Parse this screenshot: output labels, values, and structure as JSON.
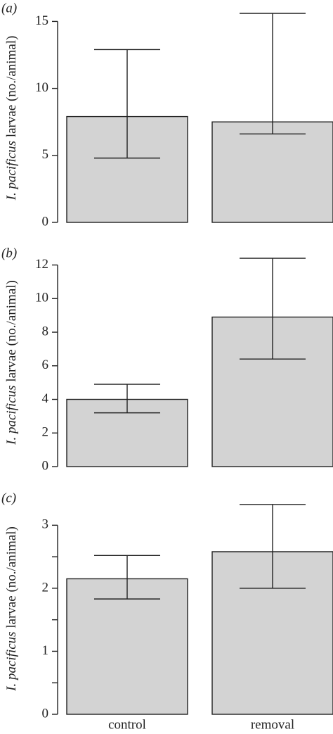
{
  "chart_data": [
    {
      "type": "bar",
      "panel_label": "(a)",
      "ylabel_italic": "I. pacificus",
      "ylabel": "larvae (no./animal)",
      "values": [
        7.9,
        7.5
      ],
      "lower": [
        4.8,
        6.6
      ],
      "upper": [
        12.9,
        15.6
      ],
      "color": "#d3d3d3",
      "ylim": [
        0,
        15.6
      ],
      "yticks": [
        0,
        5,
        10,
        15
      ]
    },
    {
      "type": "bar",
      "panel_label": "(b)",
      "ylabel_italic": "I. pacificus",
      "ylabel": "larvae (no./animal)",
      "values": [
        4.0,
        8.9
      ],
      "lower": [
        3.2,
        6.4
      ],
      "upper": [
        4.9,
        12.4
      ],
      "color": "#d3d3d3",
      "ylim": [
        0,
        12.4
      ],
      "yticks": [
        0,
        2,
        4,
        6,
        8,
        10,
        12
      ]
    },
    {
      "type": "bar",
      "panel_label": "(c)",
      "ylabel_italic": "I. pacificus",
      "ylabel": "larvae (no./animal)",
      "categories": [
        "control",
        "removal"
      ],
      "values": [
        2.15,
        2.58
      ],
      "lower": [
        1.83,
        2.0
      ],
      "upper": [
        2.52,
        3.33
      ],
      "color": "#d3d3d3",
      "ylim": [
        0,
        3.35
      ],
      "yticks": [
        0,
        1,
        2,
        3
      ],
      "minor_yticks": [
        0.5,
        1.5,
        2.5
      ]
    }
  ]
}
